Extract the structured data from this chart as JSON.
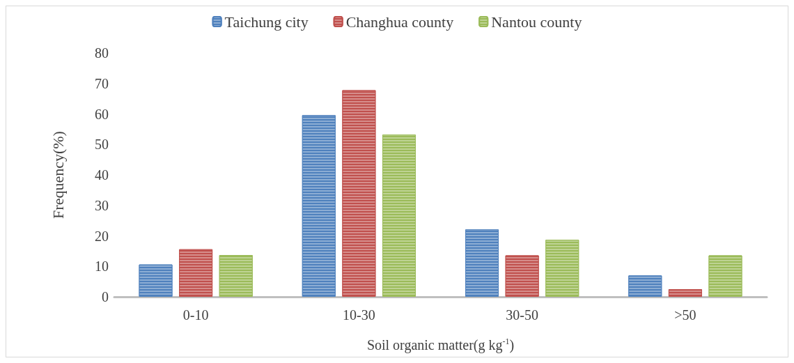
{
  "chart_data": {
    "type": "bar",
    "xlabel": "Soil organic matter(g kg$^{-1}$)",
    "ylabel": "Frequency(%)",
    "categories": [
      "0-10",
      "10-30",
      "30-50",
      ">50"
    ],
    "series": [
      {
        "name": "Taichung city",
        "color": "#4f81bd",
        "values": [
          10.6,
          59.6,
          22.1,
          7.0
        ]
      },
      {
        "name": "Changhua county",
        "color": "#c0504d",
        "values": [
          15.6,
          67.8,
          13.6,
          2.5
        ]
      },
      {
        "name": "Nantou county",
        "color": "#9bbb59",
        "values": [
          13.7,
          53.2,
          18.7,
          13.6
        ]
      }
    ],
    "ylim": [
      0,
      80
    ],
    "yticks": [
      0,
      10,
      20,
      30,
      40,
      50,
      60,
      70,
      80
    ],
    "grid": false,
    "legend": "top"
  }
}
